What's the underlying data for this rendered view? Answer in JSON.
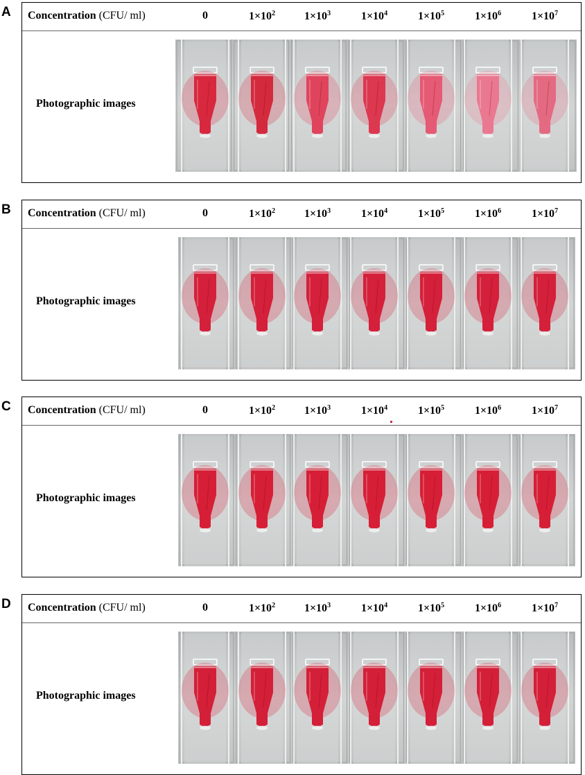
{
  "panels": [
    {
      "letter": "A",
      "concentration_label": "Concentration",
      "unit_label": "(CFU/ ml)",
      "row_label": "Photographic images",
      "columns": [
        {
          "base": "0",
          "exp": ""
        },
        {
          "base": "1×10",
          "exp": "2"
        },
        {
          "base": "1×10",
          "exp": "3"
        },
        {
          "base": "1×10",
          "exp": "4"
        },
        {
          "base": "1×10",
          "exp": "5"
        },
        {
          "base": "1×10",
          "exp": "6"
        },
        {
          "base": "1×10",
          "exp": "7"
        }
      ],
      "tube_colors": [
        "#d8283e",
        "#d42a3e",
        "#e0445c",
        "#dc3850",
        "#e55a74",
        "#ea7890",
        "#e46a82"
      ]
    },
    {
      "letter": "B",
      "concentration_label": "Concentration",
      "unit_label": "(CFU/ ml)",
      "row_label": "Photographic images",
      "columns": [
        {
          "base": "0",
          "exp": ""
        },
        {
          "base": "1×10",
          "exp": "2"
        },
        {
          "base": "1×10",
          "exp": "3"
        },
        {
          "base": "1×10",
          "exp": "4"
        },
        {
          "base": "1×10",
          "exp": "5"
        },
        {
          "base": "1×10",
          "exp": "6"
        },
        {
          "base": "1×10",
          "exp": "7"
        }
      ],
      "tube_colors": [
        "#d4203a",
        "#d4203a",
        "#d4203a",
        "#d4203a",
        "#d4203a",
        "#d4203a",
        "#d4203a"
      ]
    },
    {
      "letter": "C",
      "concentration_label": "Concentration",
      "unit_label": "(CFU/ ml)",
      "row_label": "Photographic images",
      "columns": [
        {
          "base": "0",
          "exp": ""
        },
        {
          "base": "1×10",
          "exp": "2"
        },
        {
          "base": "1×10",
          "exp": "3"
        },
        {
          "base": "1×10",
          "exp": "4"
        },
        {
          "base": "1×10",
          "exp": "5"
        },
        {
          "base": "1×10",
          "exp": "6"
        },
        {
          "base": "1×10",
          "exp": "7"
        }
      ],
      "tube_colors": [
        "#d61f36",
        "#d61f36",
        "#d61f36",
        "#d61f36",
        "#d61f36",
        "#d61f36",
        "#d61f36"
      ]
    },
    {
      "letter": "D",
      "concentration_label": "Concentration",
      "unit_label": "(CFU/ ml)",
      "row_label": "Photographic images",
      "columns": [
        {
          "base": "0",
          "exp": ""
        },
        {
          "base": "1×10",
          "exp": "2"
        },
        {
          "base": "1×10",
          "exp": "3"
        },
        {
          "base": "1×10",
          "exp": "4"
        },
        {
          "base": "1×10",
          "exp": "5"
        },
        {
          "base": "1×10",
          "exp": "6"
        },
        {
          "base": "1×10",
          "exp": "7"
        }
      ],
      "tube_colors": [
        "#d41f38",
        "#d41f38",
        "#d41f38",
        "#d41f38",
        "#d41f38",
        "#d41f38",
        "#d41f38"
      ]
    }
  ]
}
